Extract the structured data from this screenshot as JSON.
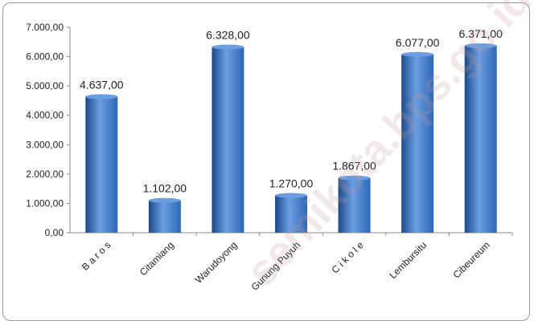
{
  "chart_data": {
    "type": "bar",
    "categories": [
      "B a r o s",
      "Citamiang",
      "Warudoyong",
      "Gunung Puyuh",
      "C i k o l e",
      "Lembursitu",
      "Cibeureum"
    ],
    "values": [
      4637,
      1102,
      6328,
      1270,
      1867,
      6077,
      6371
    ],
    "data_labels": [
      "4.637,00",
      "1.102,00",
      "6.328,00",
      "1.270,00",
      "1.867,00",
      "6.077,00",
      "6.371,00"
    ],
    "y_ticks": [
      "0,00",
      "1.000,00",
      "2.000,00",
      "3.000,00",
      "4.000,00",
      "5.000,00",
      "6.000,00",
      "7.000,00"
    ],
    "ylim": [
      0,
      7000
    ],
    "title": "",
    "xlabel": "",
    "ylabel": "",
    "grid": false,
    "legend": "none",
    "bar_color": "#2e67b8",
    "bar_color_light": "#6a9ee0",
    "bar_color_dark": "#1c4a8c"
  },
  "watermark": "semikota.bps.go.id"
}
